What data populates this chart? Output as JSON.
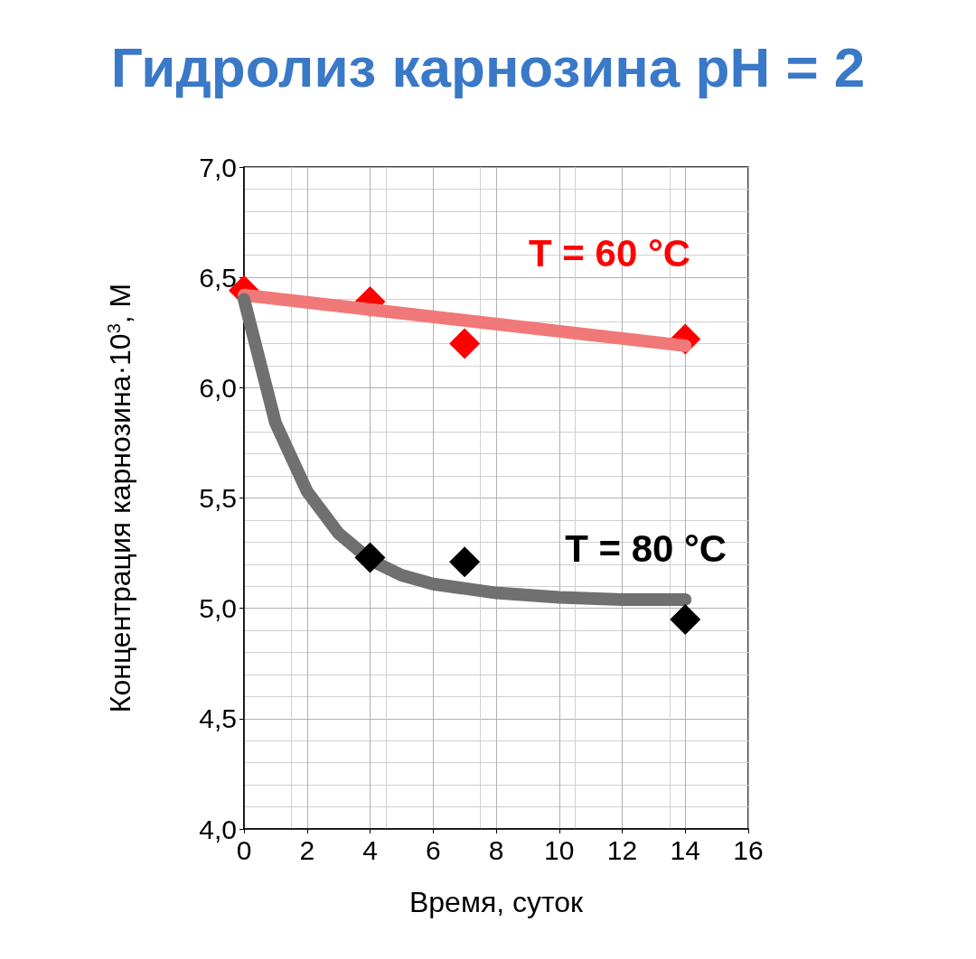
{
  "chart_data": {
    "type": "scatter",
    "title": "Гидролиз карнозина pH = 2",
    "xlabel": "Время, суток",
    "ylabel": "Концентрация карнозина·10$^{3}$, М",
    "xlim": [
      0,
      16
    ],
    "xticks": [
      0,
      2,
      4,
      6,
      8,
      10,
      12,
      14,
      16
    ],
    "ylim": [
      4,
      7
    ],
    "yticks": [
      {
        "value": 4,
        "label": "4,0"
      },
      {
        "value": 4.5,
        "label": "4,5"
      },
      {
        "value": 5,
        "label": "5,0"
      },
      {
        "value": 5.5,
        "label": "5,5"
      },
      {
        "value": 6,
        "label": "6,0"
      },
      {
        "value": 6.5,
        "label": "6,5"
      },
      {
        "value": 7,
        "label": "7,0"
      }
    ],
    "grid": true,
    "legend": false,
    "marker": "diamond",
    "series": [
      {
        "name": "T = 60 °C",
        "type": "scatter",
        "color": "#ff0000",
        "x": [
          0,
          4,
          7,
          14
        ],
        "values": [
          6.44,
          6.39,
          6.2,
          6.22
        ]
      },
      {
        "type": "line",
        "color": "#f07878",
        "line_style": "solid",
        "marker": "none",
        "x": [
          0,
          14
        ],
        "values": [
          6.42,
          6.19
        ]
      },
      {
        "type": "line",
        "color": "#707070",
        "line_style": "solid",
        "marker": "none",
        "x": [
          0,
          1,
          2,
          3,
          4,
          5,
          6,
          7,
          8,
          10,
          12,
          14
        ],
        "values": [
          6.4,
          5.84,
          5.53,
          5.34,
          5.22,
          5.15,
          5.11,
          5.09,
          5.07,
          5.05,
          5.04,
          5.04
        ]
      },
      {
        "name": "T = 80 °C",
        "type": "scatter",
        "color": "#000000",
        "x": [
          4,
          7,
          14
        ],
        "values": [
          5.23,
          5.21,
          4.95
        ]
      }
    ]
  }
}
